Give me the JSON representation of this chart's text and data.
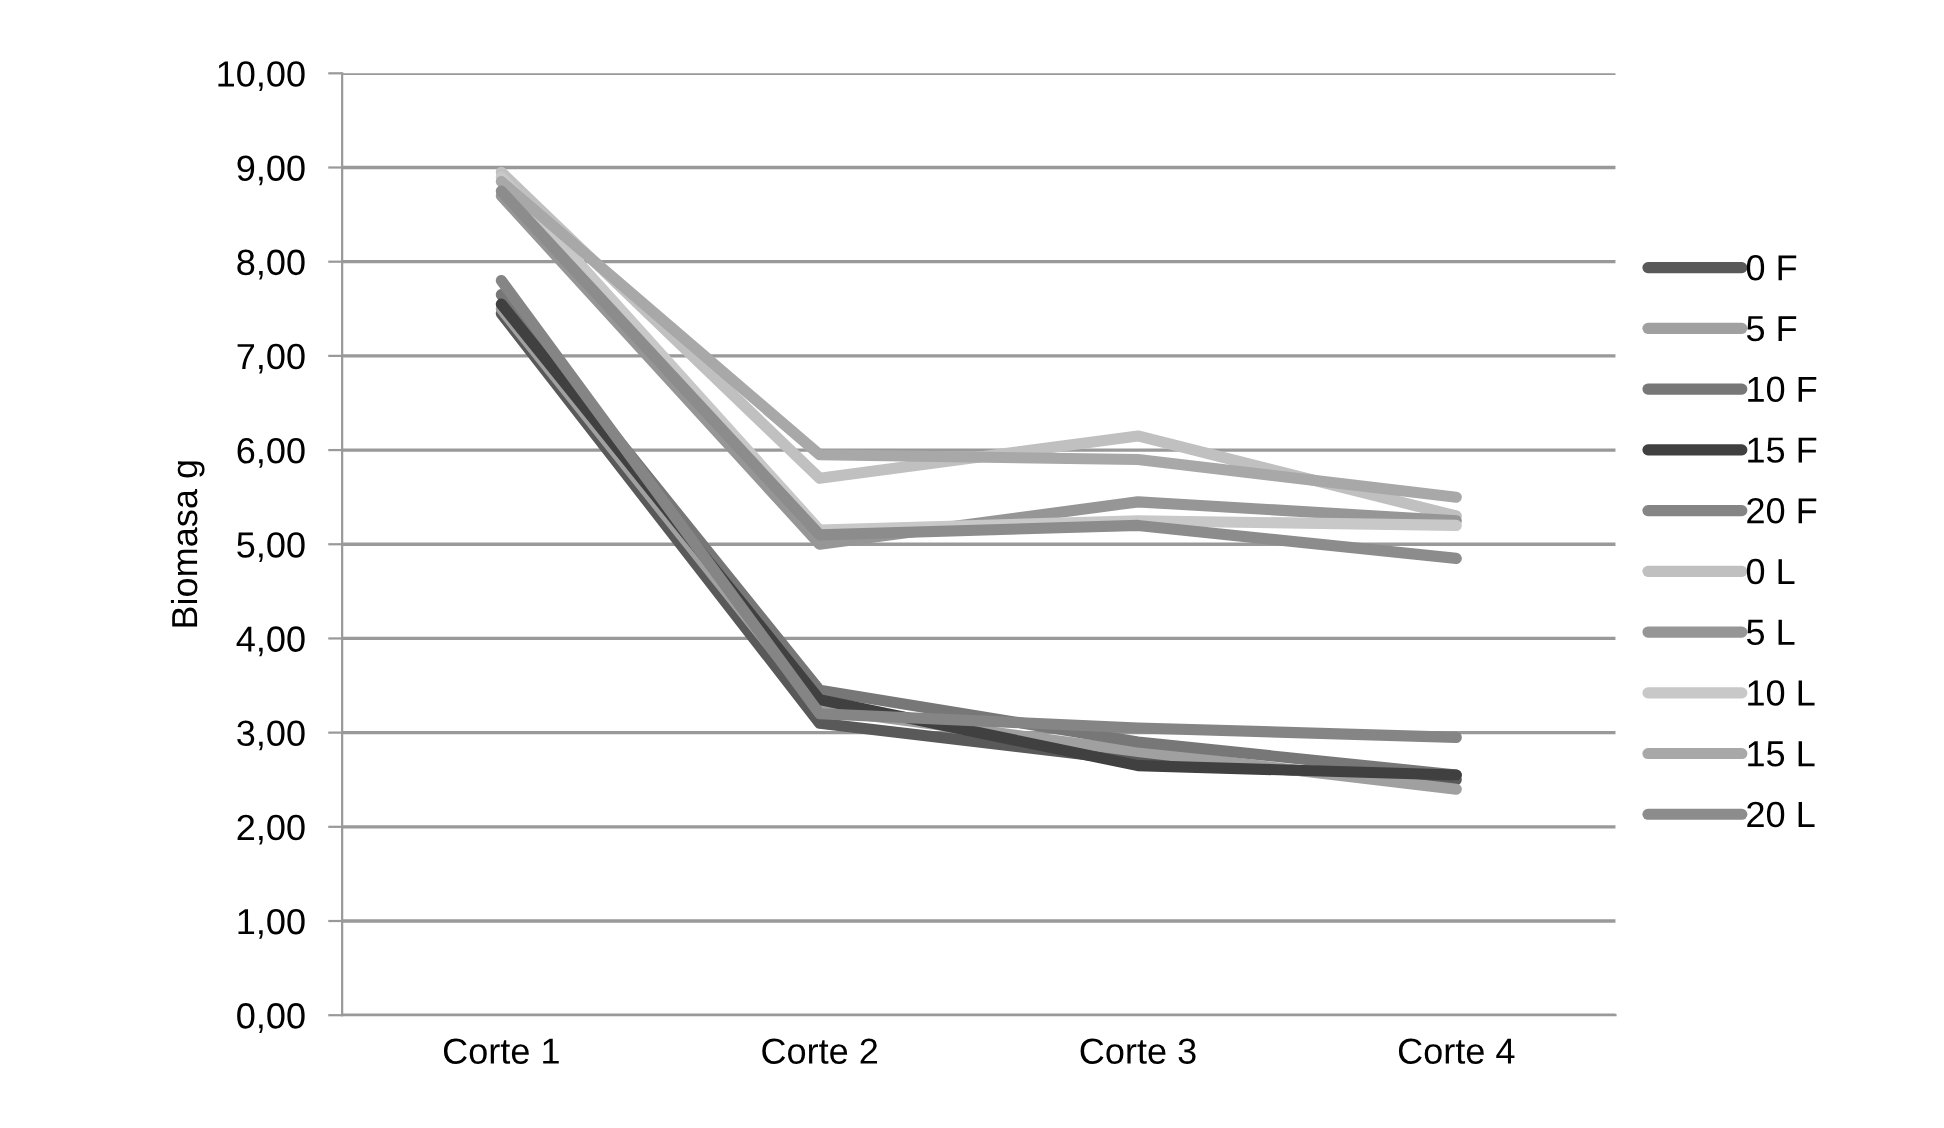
{
  "chart_data": {
    "type": "line",
    "ylabel": "Biomasa g",
    "categories": [
      "Corte 1",
      "Corte 2",
      "Corte 3",
      "Corte 4"
    ],
    "ylim": [
      0,
      10
    ],
    "yticks": [
      {
        "value": 0,
        "label": "0,00"
      },
      {
        "value": 1,
        "label": "1,00"
      },
      {
        "value": 2,
        "label": "2,00"
      },
      {
        "value": 3,
        "label": "3,00"
      },
      {
        "value": 4,
        "label": "4,00"
      },
      {
        "value": 5,
        "label": "5,00"
      },
      {
        "value": 6,
        "label": "6,00"
      },
      {
        "value": 7,
        "label": "7,00"
      },
      {
        "value": 8,
        "label": "8,00"
      },
      {
        "value": 9,
        "label": "9,00"
      },
      {
        "value": 10,
        "label": "10,00"
      }
    ],
    "grid": "y",
    "legend": "right",
    "marker": "none",
    "line_style": "solid",
    "series": [
      {
        "name": "0 F",
        "color": "#595959",
        "values": [
          7.45,
          3.1,
          2.7,
          2.5
        ]
      },
      {
        "name": "5 F",
        "color": "#a0a0a0",
        "values": [
          7.5,
          3.25,
          2.8,
          2.4
        ]
      },
      {
        "name": "10 F",
        "color": "#777777",
        "values": [
          7.65,
          3.45,
          2.9,
          2.55
        ]
      },
      {
        "name": "15 F",
        "color": "#404040",
        "values": [
          7.55,
          3.35,
          2.65,
          2.55
        ]
      },
      {
        "name": "20 F",
        "color": "#858585",
        "values": [
          7.8,
          3.2,
          3.05,
          2.95
        ]
      },
      {
        "name": "0 L",
        "color": "#c0c0c0",
        "values": [
          8.95,
          5.7,
          6.15,
          5.3
        ]
      },
      {
        "name": "5 L",
        "color": "#969696",
        "values": [
          8.7,
          5.0,
          5.45,
          5.25
        ]
      },
      {
        "name": "10 L",
        "color": "#c8c8c8",
        "values": [
          8.9,
          5.15,
          5.25,
          5.2
        ]
      },
      {
        "name": "15 L",
        "color": "#a8a8a8",
        "values": [
          8.85,
          5.95,
          5.9,
          5.5
        ]
      },
      {
        "name": "20 L",
        "color": "#8c8c8c",
        "values": [
          8.75,
          5.1,
          5.2,
          4.85
        ]
      }
    ]
  }
}
